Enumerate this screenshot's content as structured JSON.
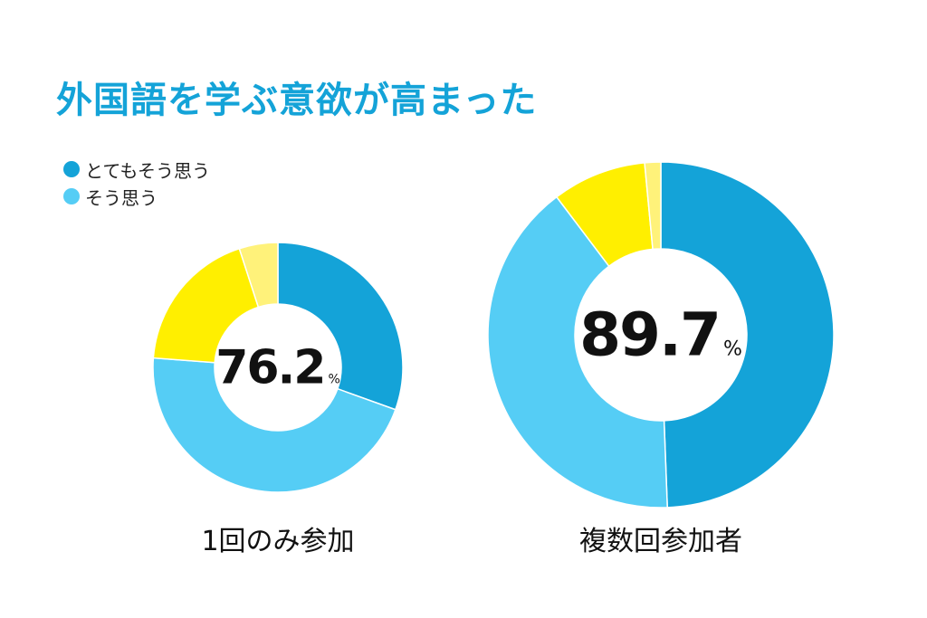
{
  "title": "外国語を学ぶ意欲が高まった",
  "legend": [
    {
      "label": "とてもそう思う",
      "color": "#14a3d8"
    },
    {
      "label": "そう思う",
      "color": "#55cdf5"
    }
  ],
  "chart_data": [
    {
      "type": "pie",
      "title": "1回のみ参加",
      "center_value": "76.2",
      "center_unit": "%",
      "slices": [
        {
          "label": "とてもそう思う",
          "value": 30.5,
          "color": "#14a3d8"
        },
        {
          "label": "そう思う",
          "value": 45.7,
          "color": "#55cdf5"
        },
        {
          "label": "",
          "value": 18.8,
          "color": "#ffef00"
        },
        {
          "label": "",
          "value": 5.0,
          "color": "#fff27a"
        }
      ]
    },
    {
      "type": "pie",
      "title": "複数回参加者",
      "center_value": "89.7",
      "center_unit": "%",
      "slices": [
        {
          "label": "とてもそう思う",
          "value": 49.4,
          "color": "#14a3d8"
        },
        {
          "label": "そう思う",
          "value": 40.3,
          "color": "#55cdf5"
        },
        {
          "label": "",
          "value": 8.8,
          "color": "#ffef00"
        },
        {
          "label": "",
          "value": 1.5,
          "color": "#fff27a"
        }
      ]
    }
  ]
}
